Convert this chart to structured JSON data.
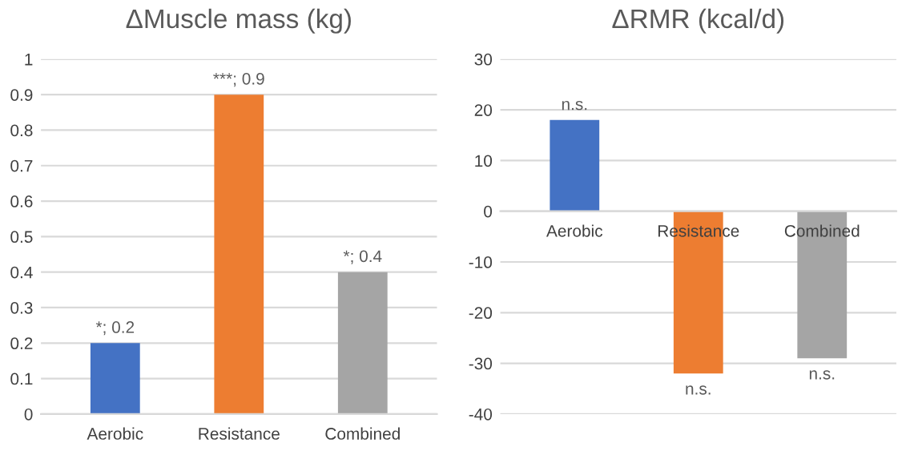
{
  "chart_data": [
    {
      "type": "bar",
      "title": "ΔMuscle mass (kg)",
      "categories": [
        "Aerobic",
        "Resistance",
        "Combined"
      ],
      "values": [
        0.2,
        0.9,
        0.4
      ],
      "colors": [
        "#4472c4",
        "#ed7d31",
        "#a5a5a5"
      ],
      "value_labels": [
        "*; 0.2",
        "***; 0.9",
        "*; 0.4"
      ],
      "ylim": [
        0,
        1
      ],
      "yticks": [
        0,
        0.1,
        0.2,
        0.3,
        0.4,
        0.5,
        0.6,
        0.7,
        0.8,
        0.9,
        1
      ],
      "grid": "y"
    },
    {
      "type": "bar",
      "title": "ΔRMR (kcal/d)",
      "categories": [
        "Aerobic",
        "Resistance",
        "Combined"
      ],
      "values": [
        18,
        -32,
        -29
      ],
      "colors": [
        "#4472c4",
        "#ed7d31",
        "#a5a5a5"
      ],
      "value_labels": [
        "n.s.",
        "n.s.",
        "n.s."
      ],
      "ylim": [
        -40,
        30
      ],
      "yticks": [
        -40,
        -30,
        -20,
        -10,
        0,
        10,
        20,
        30
      ],
      "grid": "y"
    }
  ]
}
